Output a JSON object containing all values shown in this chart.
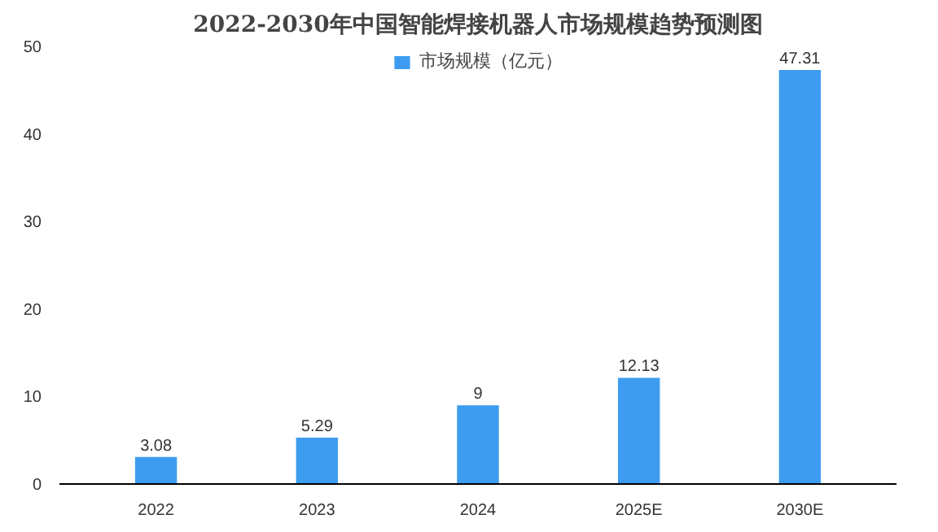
{
  "chart_data": {
    "type": "bar",
    "title": "2022-2030年中国智能焊接机器人市场规模趋势预测图",
    "categories": [
      "2022",
      "2023",
      "2024",
      "2025E",
      "2030E"
    ],
    "series": [
      {
        "name": "市场规模（亿元）",
        "color": "#3d9cf0",
        "values": [
          3.08,
          5.29,
          9,
          12.13,
          47.31
        ]
      }
    ],
    "ylim": [
      0,
      50
    ],
    "yticks": [
      0,
      10,
      20,
      30,
      40,
      50
    ],
    "grid": false,
    "legend": "top",
    "data_labels": true
  }
}
